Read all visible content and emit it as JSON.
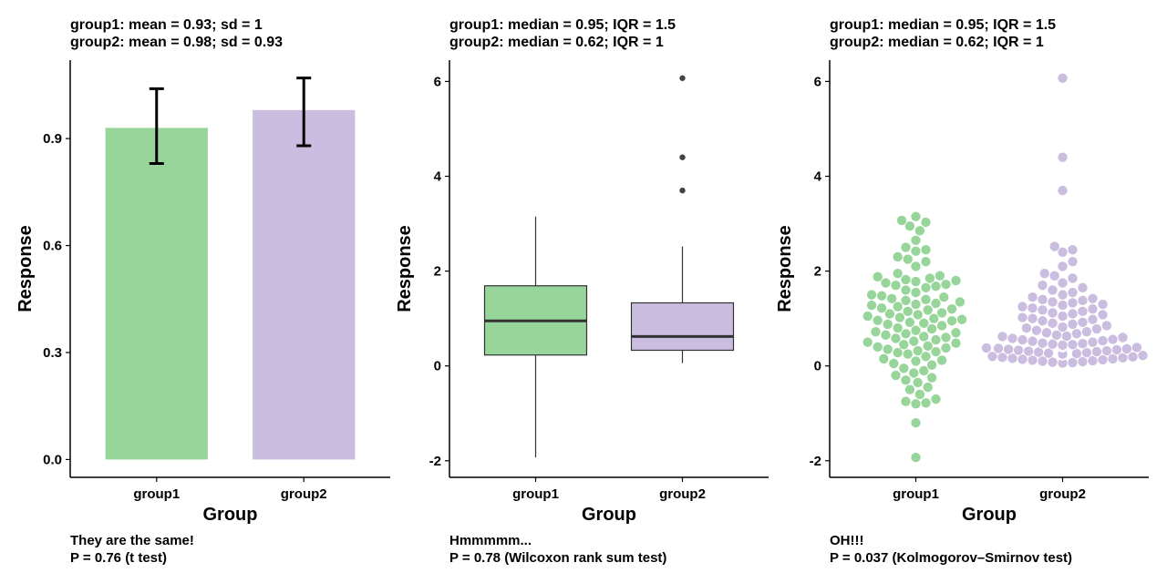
{
  "chart_data": [
    {
      "type": "bar",
      "title_lines": [
        "group1: mean = 0.93; sd = 1",
        "group2: mean = 0.98; sd = 0.93"
      ],
      "xlabel": "Group",
      "ylabel": "Response",
      "categories": [
        "group1",
        "group2"
      ],
      "values": [
        0.93,
        0.98
      ],
      "error_low": [
        0.83,
        0.88
      ],
      "error_high": [
        1.04,
        1.07
      ],
      "colors": [
        "#98d59a",
        "#cabddf"
      ],
      "ylim": [
        -0.05,
        1.12
      ],
      "yticks": [
        0.0,
        0.3,
        0.6,
        0.9
      ],
      "ytick_labels": [
        "0.0",
        "0.3",
        "0.6",
        "0.9"
      ],
      "caption_lines": [
        "They are the same!",
        "P = 0.76 (t test)"
      ]
    },
    {
      "type": "box",
      "title_lines": [
        "group1: median = 0.95; IQR = 1.5",
        "group2: median = 0.62; IQR = 1"
      ],
      "xlabel": "Group",
      "ylabel": "Response",
      "categories": [
        "group1",
        "group2"
      ],
      "boxes": [
        {
          "whisker_low": -1.93,
          "q1": 0.23,
          "median": 0.95,
          "q3": 1.69,
          "whisker_high": 3.15,
          "outliers": []
        },
        {
          "whisker_low": 0.06,
          "q1": 0.33,
          "median": 0.62,
          "q3": 1.33,
          "whisker_high": 2.52,
          "outliers": [
            6.07,
            4.4,
            3.7
          ]
        }
      ],
      "colors": [
        "#98d59a",
        "#cabddf"
      ],
      "ylim": [
        -2.35,
        6.45
      ],
      "yticks": [
        -2,
        0,
        2,
        4,
        6
      ],
      "ytick_labels": [
        "-2",
        "0",
        "2",
        "4",
        "6"
      ],
      "caption_lines": [
        "Hmmmmm...",
        "P = 0.78 (Wilcoxon rank sum test)"
      ]
    },
    {
      "type": "scatter",
      "title_lines": [
        "group1: median = 0.95; IQR = 1.5",
        "group2: median = 0.62; IQR = 1"
      ],
      "xlabel": "Group",
      "ylabel": "Response",
      "categories": [
        "group1",
        "group2"
      ],
      "series": [
        {
          "values": [
            3.15,
            3.07,
            3.03,
            2.95,
            2.85,
            2.65,
            2.5,
            2.45,
            2.42,
            2.3,
            2.25,
            2.2,
            2.1,
            1.95,
            1.9,
            1.88,
            1.85,
            1.82,
            1.8,
            1.78,
            1.75,
            1.72,
            1.7,
            1.68,
            1.65,
            1.6,
            1.55,
            1.5,
            1.48,
            1.45,
            1.42,
            1.4,
            1.38,
            1.35,
            1.32,
            1.3,
            1.28,
            1.25,
            1.22,
            1.2,
            1.18,
            1.15,
            1.12,
            1.1,
            1.08,
            1.05,
            1.02,
            1.0,
            0.98,
            0.96,
            0.95,
            0.92,
            0.9,
            0.88,
            0.85,
            0.8,
            0.78,
            0.75,
            0.72,
            0.7,
            0.68,
            0.65,
            0.62,
            0.6,
            0.58,
            0.55,
            0.52,
            0.5,
            0.48,
            0.45,
            0.42,
            0.4,
            0.38,
            0.35,
            0.32,
            0.3,
            0.28,
            0.25,
            0.2,
            0.15,
            0.12,
            0.1,
            0.05,
            0.02,
            -0.05,
            -0.1,
            -0.15,
            -0.2,
            -0.25,
            -0.3,
            -0.35,
            -0.45,
            -0.5,
            -0.6,
            -0.7,
            -0.75,
            -0.78,
            -0.8,
            -1.2,
            -1.93
          ]
        },
        {
          "values": [
            6.07,
            4.4,
            3.7,
            2.52,
            2.45,
            2.4,
            2.2,
            2.1,
            1.95,
            1.9,
            1.85,
            1.75,
            1.7,
            1.65,
            1.6,
            1.55,
            1.5,
            1.45,
            1.42,
            1.4,
            1.38,
            1.35,
            1.33,
            1.3,
            1.28,
            1.25,
            1.22,
            1.2,
            1.18,
            1.15,
            1.12,
            1.1,
            1.08,
            1.05,
            1.02,
            1.0,
            0.98,
            0.95,
            0.92,
            0.9,
            0.88,
            0.85,
            0.82,
            0.8,
            0.78,
            0.75,
            0.72,
            0.7,
            0.68,
            0.65,
            0.63,
            0.62,
            0.6,
            0.58,
            0.56,
            0.55,
            0.53,
            0.52,
            0.5,
            0.48,
            0.47,
            0.46,
            0.45,
            0.44,
            0.42,
            0.41,
            0.4,
            0.39,
            0.38,
            0.37,
            0.36,
            0.35,
            0.34,
            0.33,
            0.32,
            0.31,
            0.3,
            0.29,
            0.28,
            0.27,
            0.26,
            0.25,
            0.24,
            0.23,
            0.22,
            0.2,
            0.19,
            0.18,
            0.17,
            0.16,
            0.15,
            0.14,
            0.13,
            0.12,
            0.11,
            0.1,
            0.09,
            0.08,
            0.07,
            0.06
          ]
        }
      ],
      "colors": [
        "#98d59a",
        "#cabddf"
      ],
      "ylim": [
        -2.35,
        6.45
      ],
      "yticks": [
        -2,
        0,
        2,
        4,
        6
      ],
      "ytick_labels": [
        "-2",
        "0",
        "2",
        "4",
        "6"
      ],
      "caption_lines": [
        "OH!!!",
        "P = 0.037 (Kolmogorov–Smirnov test)"
      ]
    }
  ]
}
